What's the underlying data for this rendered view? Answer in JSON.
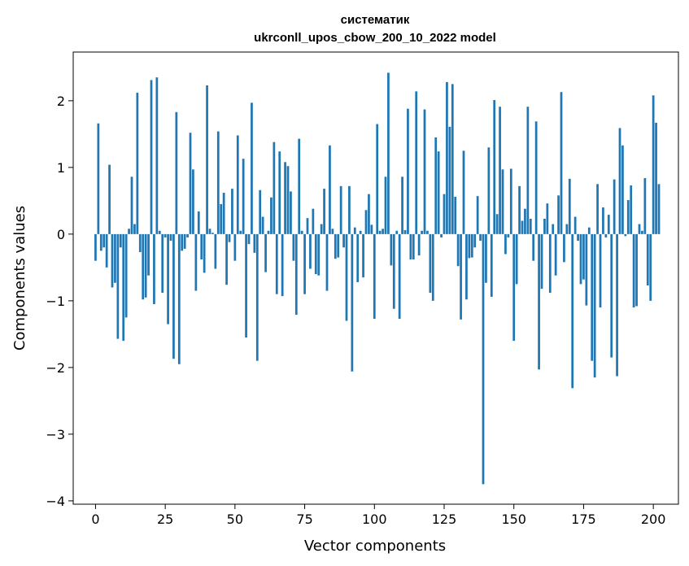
{
  "chart_data": {
    "type": "bar",
    "title_line1": "систематик",
    "title_line2": "ukrconll_upos_cbow_200_10_2022 model",
    "xlabel": "Vector components",
    "ylabel": "Components values",
    "xlim": [
      -8,
      209
    ],
    "ylim": [
      -4.05,
      2.73
    ],
    "xticks": [
      0,
      25,
      50,
      75,
      100,
      125,
      150,
      175,
      200
    ],
    "yticks": [
      -4,
      -3,
      -2,
      -1,
      0,
      1,
      2
    ],
    "grid": false,
    "bar_color": "#1f77b4",
    "values": [
      -0.4,
      1.66,
      -0.25,
      -0.2,
      -0.5,
      1.04,
      -0.8,
      -0.73,
      -1.57,
      -0.2,
      -1.6,
      -1.25,
      0.08,
      0.86,
      0.15,
      2.12,
      -0.27,
      -0.98,
      -0.95,
      -0.62,
      2.31,
      -1.05,
      2.35,
      0.05,
      -0.88,
      -0.05,
      -1.35,
      -0.1,
      -1.87,
      1.83,
      -1.95,
      -0.25,
      -0.22,
      -0.05,
      1.52,
      0.97,
      -0.85,
      0.34,
      -0.38,
      -0.58,
      2.23,
      0.08,
      0.02,
      -0.52,
      1.54,
      0.45,
      0.62,
      -0.76,
      -0.12,
      0.68,
      -0.4,
      1.48,
      0.05,
      1.13,
      -1.55,
      -0.15,
      1.97,
      -0.28,
      -1.9,
      0.66,
      0.26,
      -0.57,
      0.05,
      0.55,
      1.38,
      -0.9,
      1.24,
      -0.93,
      1.08,
      1.02,
      0.64,
      -0.4,
      -1.21,
      1.43,
      0.05,
      -0.9,
      0.24,
      -0.52,
      0.38,
      -0.6,
      -0.62,
      0.15,
      0.68,
      -0.85,
      1.33,
      0.08,
      -0.37,
      -0.35,
      0.72,
      -0.2,
      -1.3,
      0.72,
      -2.06,
      0.1,
      -0.72,
      0.05,
      -0.65,
      0.36,
      0.6,
      0.14,
      -1.27,
      1.65,
      0.05,
      0.08,
      0.86,
      2.42,
      -0.47,
      -1.12,
      0.05,
      -1.27,
      0.86,
      0.06,
      1.88,
      -0.38,
      -0.38,
      2.14,
      -0.32,
      0.05,
      1.87,
      0.05,
      -0.88,
      -1.0,
      1.45,
      1.24,
      -0.05,
      0.6,
      2.28,
      1.61,
      2.25,
      0.56,
      -0.48,
      -1.28,
      1.25,
      -0.98,
      -0.36,
      -0.35,
      -0.2,
      0.57,
      -0.1,
      -3.75,
      -0.73,
      1.3,
      -0.94,
      2.01,
      0.3,
      1.91,
      0.97,
      -0.3,
      -0.05,
      0.98,
      -1.6,
      -0.75,
      0.72,
      0.2,
      0.38,
      1.91,
      0.23,
      -0.4,
      1.69,
      -2.03,
      -0.82,
      0.23,
      0.46,
      -0.88,
      0.15,
      -0.62,
      0.58,
      2.13,
      -0.42,
      0.15,
      0.83,
      -2.31,
      0.26,
      -0.1,
      -0.75,
      -0.68,
      -1.07,
      0.1,
      -1.9,
      -2.15,
      0.75,
      -1.1,
      0.4,
      -0.05,
      0.29,
      -1.85,
      0.82,
      -2.13,
      1.59,
      1.33,
      -0.03,
      0.51,
      0.73,
      -1.1,
      -1.08,
      0.15,
      0.05,
      0.84,
      -0.77,
      -1.0,
      2.08,
      1.67,
      0.75
    ]
  }
}
